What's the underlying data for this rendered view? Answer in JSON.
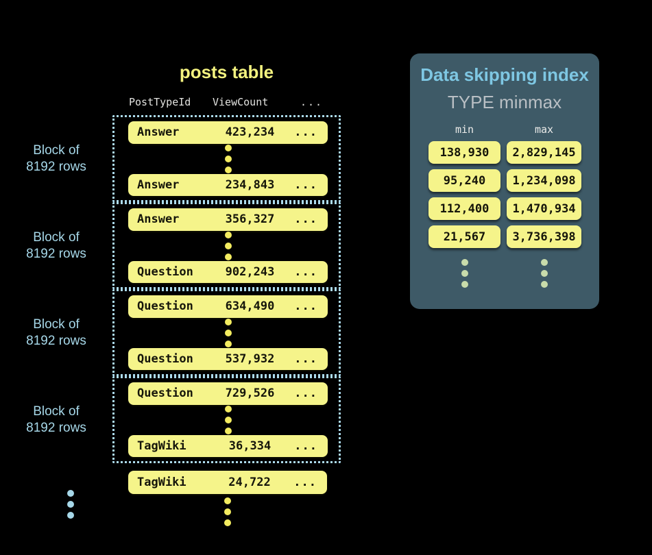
{
  "colors": {
    "background": "#000000",
    "accent_yellow": "#F5F48A",
    "title_yellow": "#F3F27F",
    "dot_yellow": "#F3EC60",
    "accent_blue": "#A6D7E8",
    "panel_bg": "#3E5A67",
    "panel_title_blue": "#7EC7E3",
    "panel_subtitle_gray": "#B9BFC4",
    "pale_green_dots": "#C9DCAB"
  },
  "posts_table": {
    "title": "posts table",
    "columns": [
      "PostTypeId",
      "ViewCount",
      "..."
    ],
    "block_label_line1": "Block of",
    "block_label_line2": "8192 rows",
    "blocks": [
      {
        "first_row": {
          "type": "Answer",
          "views": "423,234",
          "more": "..."
        },
        "last_row": {
          "type": "Answer",
          "views": "234,843",
          "more": "..."
        }
      },
      {
        "first_row": {
          "type": "Answer",
          "views": "356,327",
          "more": "..."
        },
        "last_row": {
          "type": "Question",
          "views": "902,243",
          "more": "..."
        }
      },
      {
        "first_row": {
          "type": "Question",
          "views": "634,490",
          "more": "..."
        },
        "last_row": {
          "type": "Question",
          "views": "537,932",
          "more": "..."
        }
      },
      {
        "first_row": {
          "type": "Question",
          "views": "729,526",
          "more": "..."
        },
        "last_row": {
          "type": "TagWiki",
          "views": "36,334",
          "more": "..."
        }
      }
    ],
    "trailing_row": {
      "type": "TagWiki",
      "views": "24,722",
      "more": "..."
    }
  },
  "index_panel": {
    "title": "Data skipping index",
    "subtitle": "TYPE minmax",
    "min_header": "min",
    "max_header": "max",
    "rows": [
      {
        "min": "138,930",
        "max": "2,829,145"
      },
      {
        "min": "95,240",
        "max": "1,234,098"
      },
      {
        "min": "112,400",
        "max": "1,470,934"
      },
      {
        "min": "21,567",
        "max": "3,736,398"
      }
    ]
  }
}
